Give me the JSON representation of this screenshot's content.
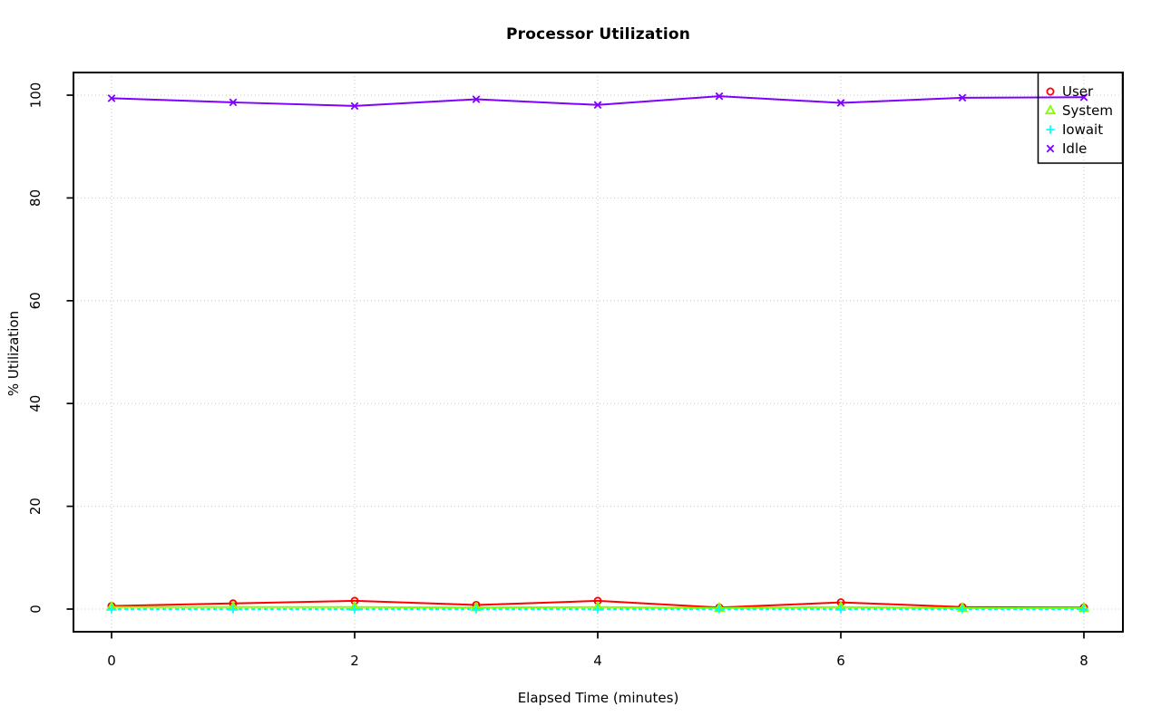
{
  "chart_data": {
    "type": "line",
    "title": "Processor Utilization",
    "xlabel": "Elapsed Time (minutes)",
    "ylabel": "% Utilization",
    "x": [
      0,
      1,
      2,
      3,
      4,
      5,
      6,
      7,
      8
    ],
    "xlim": [
      0,
      8
    ],
    "ylim": [
      0,
      100
    ],
    "xticks": [
      0,
      2,
      4,
      6,
      8
    ],
    "yticks": [
      0,
      20,
      40,
      60,
      80,
      100
    ],
    "grid": true,
    "grid_color": "#c8c8c8",
    "axis_color": "#000000",
    "legend_position": "top-right",
    "series": [
      {
        "name": "User",
        "color": "#FF0000",
        "marker": "circle",
        "linestyle": "solid",
        "values": [
          0.6,
          1.1,
          1.6,
          0.8,
          1.6,
          0.3,
          1.3,
          0.4,
          0.3
        ]
      },
      {
        "name": "System",
        "color": "#80FF00",
        "marker": "triangle",
        "linestyle": "solid",
        "values": [
          0.4,
          0.4,
          0.4,
          0.3,
          0.4,
          0.2,
          0.4,
          0.2,
          0.2
        ]
      },
      {
        "name": "Iowait",
        "color": "#00FFFF",
        "marker": "plus",
        "linestyle": "dashed",
        "values": [
          0.0,
          0.0,
          0.0,
          0.0,
          0.0,
          0.0,
          0.0,
          0.0,
          0.0
        ]
      },
      {
        "name": "Idle",
        "color": "#8000FF",
        "marker": "x",
        "linestyle": "solid",
        "values": [
          99.4,
          98.6,
          97.9,
          99.2,
          98.1,
          99.8,
          98.5,
          99.5,
          99.6
        ]
      }
    ]
  }
}
